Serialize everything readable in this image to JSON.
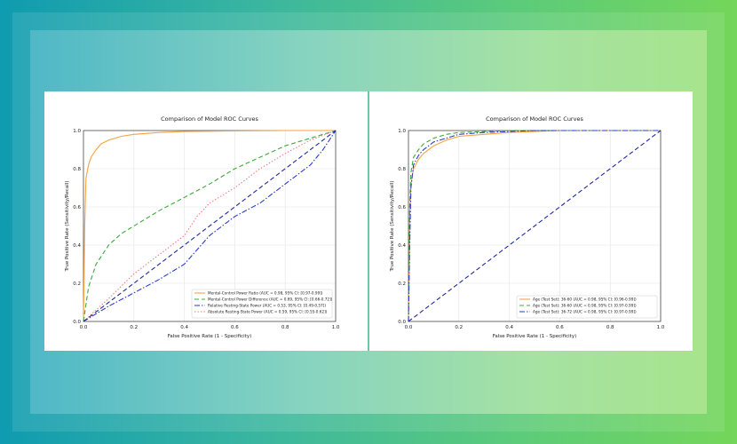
{
  "chart_data": [
    {
      "type": "line",
      "title": "Comparison of Model ROC Curves",
      "xlabel": "False Positive Rate (1 - Specificity)",
      "ylabel": "True Positive Rate (Sensitivity/Recall)",
      "xlim": [
        0,
        1
      ],
      "ylim": [
        0,
        1
      ],
      "xticks": [
        "0.0",
        "0.2",
        "0.4",
        "0.6",
        "0.8",
        "1.0"
      ],
      "yticks": [
        "0.0",
        "0.2",
        "0.4",
        "0.6",
        "0.8",
        "1.0"
      ],
      "grid": true,
      "legend_position": "lower-right",
      "series": [
        {
          "name": "Mental-Control Power Ratio (AUC = 0.98, 95% CI: [0.97-0.99])",
          "color": "#f5a142",
          "dash": "solid",
          "x": [
            0,
            0.005,
            0.01,
            0.02,
            0.03,
            0.05,
            0.07,
            0.1,
            0.15,
            0.2,
            0.3,
            0.4,
            0.6,
            0.8,
            1.0
          ],
          "y": [
            0,
            0.5,
            0.75,
            0.82,
            0.86,
            0.9,
            0.93,
            0.95,
            0.97,
            0.98,
            0.99,
            0.995,
            0.998,
            1.0,
            1.0
          ]
        },
        {
          "name": "Mental-Control Power Difference (AUC = 0.69, 95% CI: [0.66-0.72])",
          "color": "#3ca83c",
          "dash": "dashed",
          "x": [
            0,
            0.02,
            0.05,
            0.1,
            0.15,
            0.2,
            0.3,
            0.4,
            0.5,
            0.6,
            0.7,
            0.8,
            0.9,
            1.0
          ],
          "y": [
            0,
            0.18,
            0.3,
            0.4,
            0.46,
            0.5,
            0.58,
            0.65,
            0.72,
            0.8,
            0.86,
            0.92,
            0.96,
            1.0
          ]
        },
        {
          "name": "Relative Resting-State Power (AUC = 0.53, 95% CI: [0.49-0.57])",
          "color": "#2d3bd1",
          "dash": "dashdot",
          "x": [
            0,
            0.1,
            0.2,
            0.3,
            0.4,
            0.5,
            0.55,
            0.6,
            0.7,
            0.8,
            0.9,
            0.95,
            1.0
          ],
          "y": [
            0,
            0.08,
            0.15,
            0.22,
            0.3,
            0.45,
            0.5,
            0.55,
            0.62,
            0.72,
            0.82,
            0.9,
            1.0
          ]
        },
        {
          "name": "Absolute Resting-State Power (AUC = 0.59, 95% CI: [0.55-0.62])",
          "color": "#f08080",
          "dash": "dotted",
          "x": [
            0,
            0.1,
            0.2,
            0.3,
            0.4,
            0.45,
            0.5,
            0.6,
            0.7,
            0.8,
            0.9,
            1.0
          ],
          "y": [
            0,
            0.12,
            0.25,
            0.35,
            0.45,
            0.55,
            0.62,
            0.7,
            0.8,
            0.88,
            0.95,
            1.0
          ]
        },
        {
          "color": "#1f2a9e",
          "dash": "dashed",
          "x": [
            0,
            1
          ],
          "y": [
            0,
            1
          ]
        }
      ]
    },
    {
      "type": "line",
      "title": "Comparison of Model ROC Curves",
      "xlabel": "False Positive Rate (1 - Specificity)",
      "ylabel": "True Positive Rate (Sensitivity/Recall)",
      "xlim": [
        0,
        1
      ],
      "ylim": [
        0,
        1
      ],
      "xticks": [
        "0.0",
        "0.2",
        "0.4",
        "0.6",
        "0.8",
        "1.0"
      ],
      "yticks": [
        "0.0",
        "0.2",
        "0.4",
        "0.6",
        "0.8",
        "1.0"
      ],
      "grid": true,
      "legend_position": "lower-right",
      "series": [
        {
          "name": "Age (Test Set): 36-60 (AUC = 0.98, 95% CI: [0.96-0.99])",
          "color": "#f5a142",
          "dash": "solid",
          "x": [
            0,
            0.005,
            0.01,
            0.02,
            0.04,
            0.06,
            0.1,
            0.15,
            0.2,
            0.3,
            0.4,
            0.5,
            0.6,
            1.0
          ],
          "y": [
            0,
            0.55,
            0.72,
            0.8,
            0.85,
            0.88,
            0.92,
            0.95,
            0.97,
            0.98,
            0.99,
            0.995,
            1.0,
            1.0
          ]
        },
        {
          "name": "Age (Test Set): 36-60 (AUC = 0.98, 95% CI: [0.97-0.99])",
          "color": "#3ca83c",
          "dash": "dashed",
          "x": [
            0,
            0.005,
            0.01,
            0.02,
            0.04,
            0.06,
            0.1,
            0.15,
            0.2,
            0.3,
            0.4,
            0.5,
            1.0
          ],
          "y": [
            0,
            0.6,
            0.78,
            0.86,
            0.9,
            0.93,
            0.96,
            0.98,
            0.99,
            0.995,
            1.0,
            1.0,
            1.0
          ]
        },
        {
          "name": "Age (Test Set): 36-72 (AUC = 0.98, 95% CI: [0.97-0.99])",
          "color": "#2d3bd1",
          "dash": "dashdot",
          "x": [
            0,
            0.005,
            0.01,
            0.02,
            0.04,
            0.06,
            0.1,
            0.15,
            0.2,
            0.3,
            0.4,
            0.5,
            0.6,
            1.0
          ],
          "y": [
            0,
            0.4,
            0.7,
            0.82,
            0.87,
            0.9,
            0.94,
            0.96,
            0.98,
            0.99,
            0.995,
            1.0,
            1.0,
            1.0
          ]
        },
        {
          "color": "#1f2a9e",
          "dash": "dashed",
          "x": [
            0,
            1
          ],
          "y": [
            0,
            1
          ]
        }
      ]
    }
  ]
}
